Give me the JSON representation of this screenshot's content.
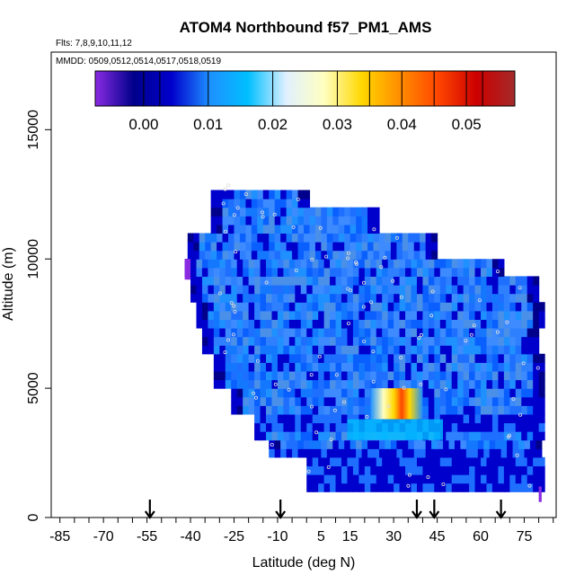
{
  "chart_data": {
    "type": "heatmap",
    "title": "ATOM4 Northbound f57_PM1_AMS",
    "annotations": [
      "Flts: 7,8,9,10,11,12",
      "MMDD: 0509,0512,0514,0517,0518,0519"
    ],
    "xlabel": "Latitude (deg N)",
    "ylabel": "Altitude (m)",
    "xlim": [
      -88,
      86
    ],
    "ylim": [
      0,
      18000
    ],
    "x_ticks": [
      -85,
      -70,
      -55,
      -40,
      -25,
      -10,
      5,
      15,
      30,
      45,
      60,
      75
    ],
    "x_tick_labels": [
      "-85",
      "-70",
      "-55",
      "-40",
      "-25",
      "-10",
      "5",
      "15",
      "30",
      "45",
      "60",
      "75"
    ],
    "y_ticks": [
      0,
      5000,
      10000,
      15000
    ],
    "y_tick_labels": [
      "0",
      "5000",
      "10000",
      "15000"
    ],
    "colorbar": {
      "range": [
        -0.0075,
        0.0575
      ],
      "ticks": [
        0.0,
        0.01,
        0.02,
        0.03,
        0.04,
        0.05
      ],
      "tick_labels": [
        "0.00",
        "0.01",
        "0.02",
        "0.03",
        "0.04",
        "0.05"
      ],
      "colors": [
        "#8a2be2",
        "#00008b",
        "#0000cd",
        "#1e90ff",
        "#00bfff",
        "#e0f0ff",
        "#ffffc0",
        "#ffd700",
        "#ff8c00",
        "#ff4500",
        "#cc0000",
        "#a52a2a"
      ]
    },
    "profile_arrows_lat": [
      -54,
      -9,
      38,
      44,
      67
    ],
    "coverage": {
      "altitude_bands_m": [
        1000,
        2000,
        3000,
        4000,
        5000,
        6000,
        7000,
        8000,
        9000,
        10000,
        11000,
        12000
      ],
      "lat_min_by_band": [
        0,
        -13,
        -18,
        -26,
        -32,
        -36,
        -38,
        -40,
        -42,
        -41,
        -33,
        -33
      ],
      "lat_max_by_band": [
        81,
        81,
        81,
        81,
        81,
        80,
        81,
        79,
        67,
        45,
        25,
        1
      ]
    },
    "grid": false,
    "legend": "top colorbar"
  }
}
